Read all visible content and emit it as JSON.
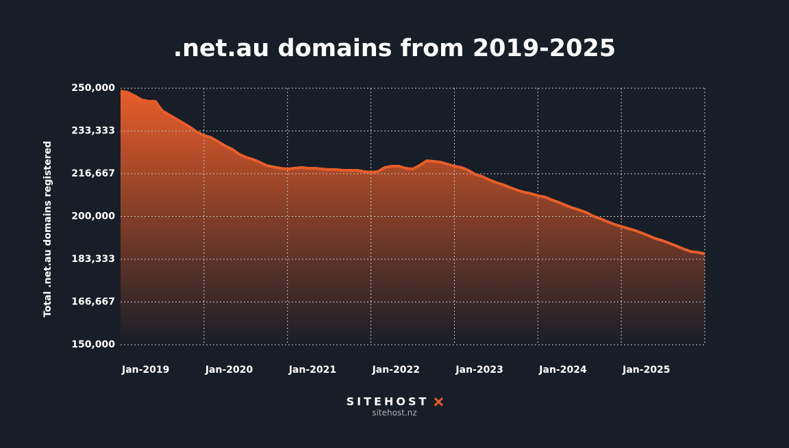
{
  "chart_data": {
    "type": "area",
    "title": ".net.au domains from 2019-2025",
    "y_label": "Total .net.au domains registered",
    "brand": "SITEHOST",
    "url": "sitehost.nz",
    "color": "#e85d2a",
    "grid": true,
    "categories": [
      "Jan-2019",
      null,
      null,
      null,
      null,
      null,
      null,
      null,
      null,
      null,
      null,
      null,
      "Jan-2020",
      null,
      null,
      null,
      null,
      null,
      null,
      null,
      null,
      null,
      null,
      null,
      "Jan-2021",
      null,
      null,
      null,
      null,
      null,
      null,
      null,
      null,
      null,
      null,
      null,
      "Jan-2022",
      null,
      null,
      null,
      null,
      null,
      null,
      null,
      null,
      null,
      null,
      null,
      "Jan-2023",
      null,
      null,
      null,
      null,
      null,
      null,
      null,
      null,
      null,
      null,
      null,
      "Jan-2024",
      null,
      null,
      null,
      null,
      null,
      null,
      null,
      null,
      null,
      null,
      null,
      "Jan-2025",
      null,
      null,
      null,
      null,
      null,
      null,
      null,
      null,
      null,
      null,
      null,
      null
    ],
    "values": [
      248900,
      248400,
      247100,
      245500,
      244900,
      244900,
      241200,
      239600,
      238000,
      236400,
      234800,
      232900,
      231600,
      230800,
      229200,
      227600,
      226300,
      224400,
      223100,
      222300,
      221200,
      219900,
      219300,
      218800,
      218500,
      218800,
      219100,
      218800,
      218800,
      218500,
      218300,
      218300,
      218000,
      218000,
      218000,
      217500,
      217200,
      217500,
      219100,
      219600,
      219600,
      218800,
      218500,
      219900,
      221700,
      221500,
      221200,
      220400,
      219600,
      219100,
      218000,
      216400,
      215600,
      214300,
      213200,
      212400,
      211300,
      210300,
      209500,
      208900,
      208100,
      207600,
      206500,
      205500,
      204400,
      203300,
      202500,
      201500,
      200100,
      199100,
      198000,
      196900,
      196100,
      195300,
      194500,
      193500,
      192400,
      191300,
      190500,
      189500,
      188400,
      187300,
      186300,
      186000,
      185500
    ],
    "ylim": [
      150000,
      250000
    ],
    "yticks": [
      {
        "value": 150000,
        "label": "150,000"
      },
      {
        "value": 166667,
        "label": "166,667"
      },
      {
        "value": 183333,
        "label": "183,333"
      },
      {
        "value": 200000,
        "label": "200,000"
      },
      {
        "value": 216667,
        "label": "216,667"
      },
      {
        "value": 233333,
        "label": "233,333"
      },
      {
        "value": 250000,
        "label": "250,000"
      }
    ]
  }
}
